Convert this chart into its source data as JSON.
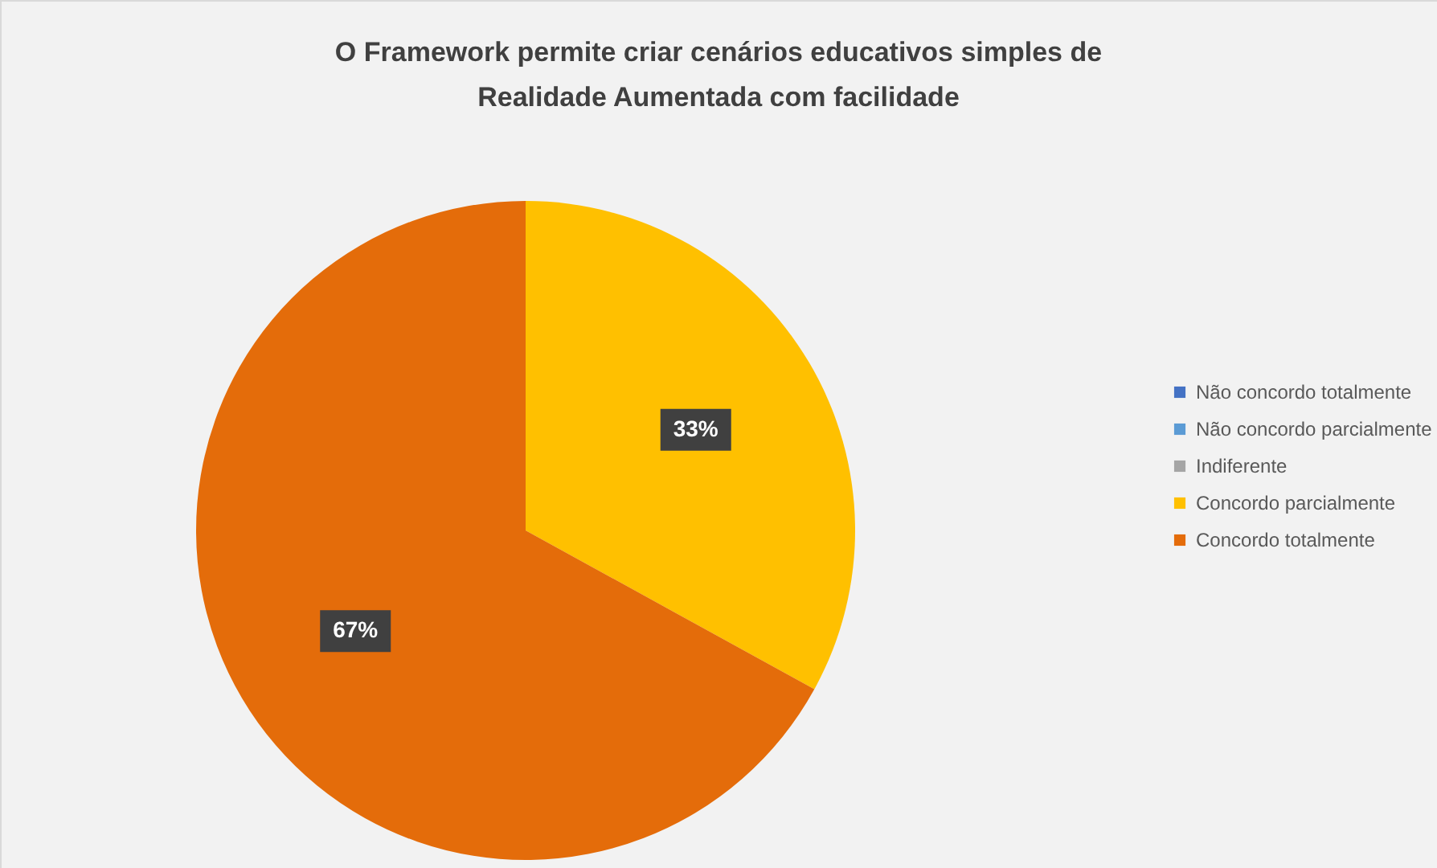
{
  "chart_data": {
    "type": "pie",
    "title": "O Framework permite criar cenários educativos simples de Realidade Aumentada com facilidade",
    "categories": [
      "Não concordo totalmente",
      "Não concordo parcialmente",
      "Indiferente",
      "Concordo parcialmente",
      "Concordo totalmente"
    ],
    "values": [
      0,
      0,
      0,
      33,
      67
    ],
    "colors": [
      "#4472c4",
      "#5b9bd5",
      "#a5a5a5",
      "#ffc000",
      "#e46c0a"
    ],
    "value_labels": [
      null,
      null,
      null,
      "33%",
      "67%"
    ],
    "legend": "right"
  }
}
